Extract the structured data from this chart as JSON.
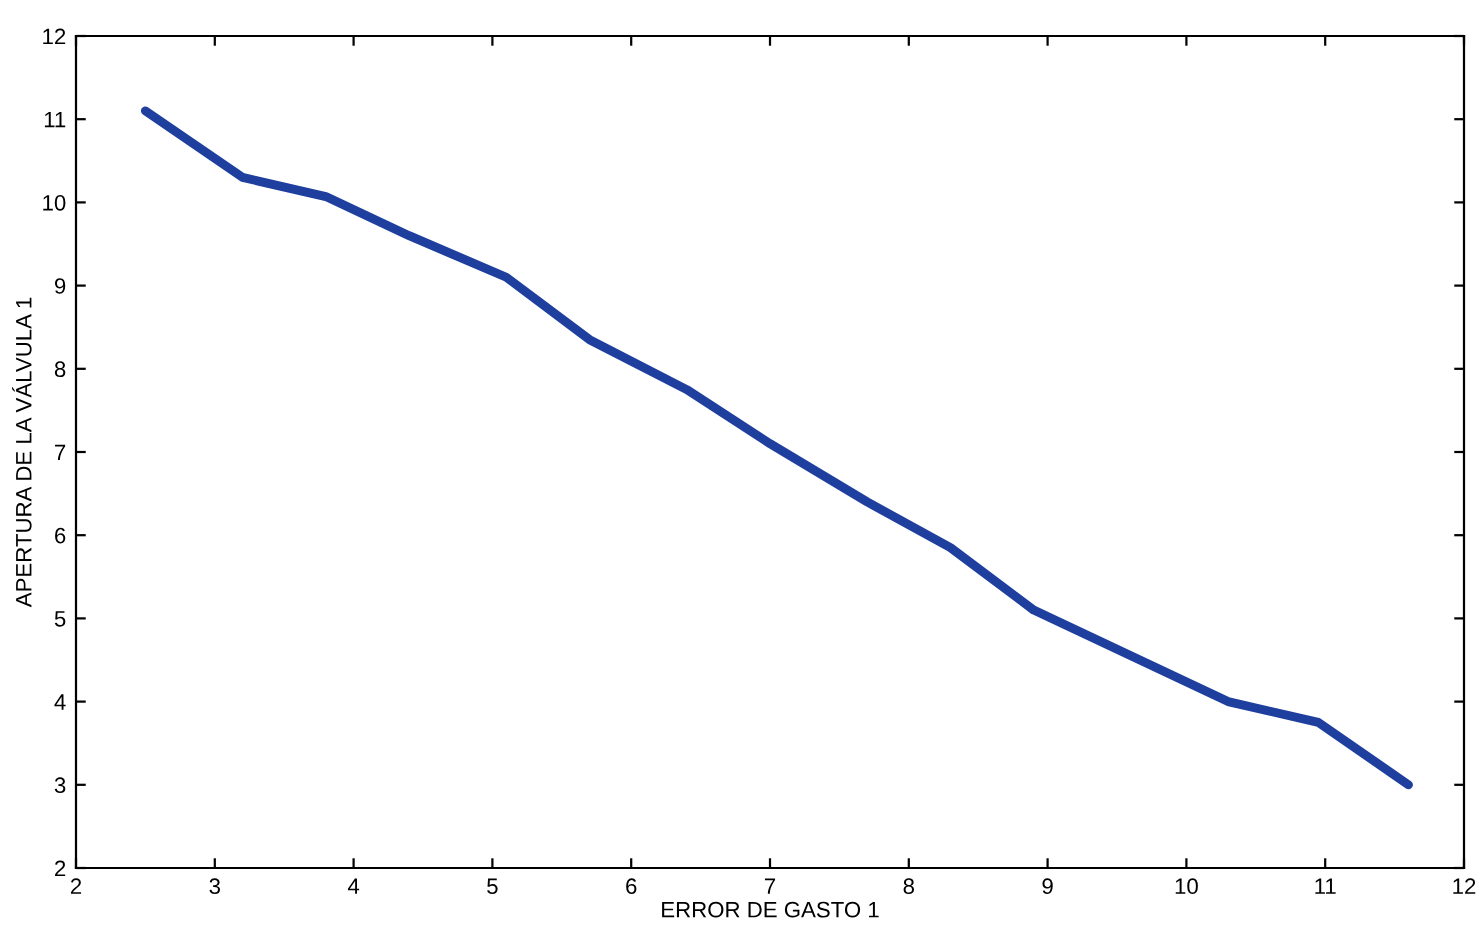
{
  "chart_data": {
    "type": "line",
    "xlabel": "ERROR DE GASTO 1",
    "ylabel": "APERTURA DE LA VÁLVULA 1",
    "x": [
      2.5,
      3.2,
      3.8,
      4.4,
      5.1,
      5.7,
      6.4,
      7.0,
      7.7,
      8.3,
      8.9,
      9.6,
      10.3,
      10.95,
      11.6
    ],
    "series": [
      {
        "color": "#1f3f9f",
        "values": [
          11.1,
          10.3,
          10.07,
          9.6,
          9.1,
          8.35,
          7.75,
          7.1,
          6.4,
          5.85,
          5.1,
          4.55,
          4.0,
          3.75,
          3.0
        ]
      }
    ],
    "xlim": [
      2,
      12
    ],
    "ylim": [
      2,
      12
    ],
    "xticks": [
      2,
      3,
      4,
      5,
      6,
      7,
      8,
      9,
      10,
      11,
      12
    ],
    "yticks": [
      2,
      3,
      4,
      5,
      6,
      7,
      8,
      9,
      10,
      11,
      12
    ],
    "grid": false,
    "legend": false,
    "marker": "none",
    "line_style": "solid"
  }
}
